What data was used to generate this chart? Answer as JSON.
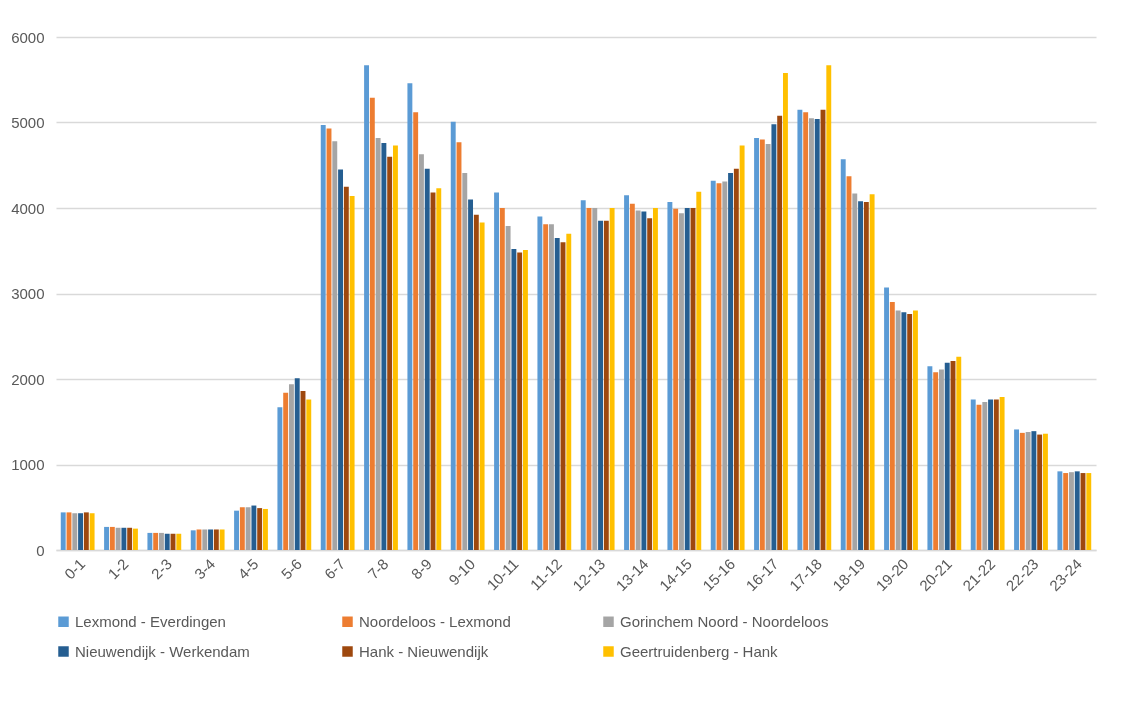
{
  "chart_data": {
    "type": "bar",
    "categories": [
      "0-1",
      "1-2",
      "2-3",
      "3-4",
      "4-5",
      "5-6",
      "6-7",
      "7-8",
      "8-9",
      "9-10",
      "10-11",
      "11-12",
      "12-13",
      "13-14",
      "14-15",
      "15-16",
      "16-17",
      "17-18",
      "18-19",
      "19-20",
      "20-21",
      "21-22",
      "22-23",
      "23-24"
    ],
    "series": [
      {
        "name": "Lexmond - Everdingen",
        "color": "#5b9bd5",
        "values": [
          440,
          270,
          200,
          230,
          460,
          1670,
          4970,
          5670,
          5460,
          5010,
          4180,
          3900,
          4090,
          4150,
          4070,
          4320,
          4820,
          5150,
          4570,
          3070,
          2150,
          1760,
          1410,
          920
        ]
      },
      {
        "name": "Noordeloos - Lexmond",
        "color": "#ed7d31",
        "values": [
          440,
          270,
          200,
          240,
          500,
          1840,
          4930,
          5290,
          5120,
          4770,
          4000,
          3810,
          4000,
          4050,
          3990,
          4290,
          4800,
          5120,
          4370,
          2900,
          2080,
          1700,
          1370,
          900
        ]
      },
      {
        "name": "Gorinchem Noord - Noordeloos",
        "color": "#a5a5a5",
        "values": [
          430,
          260,
          200,
          240,
          500,
          1940,
          4780,
          4820,
          4630,
          4410,
          3790,
          3810,
          4000,
          3970,
          3940,
          4310,
          4750,
          5050,
          4170,
          2800,
          2110,
          1730,
          1380,
          910
        ]
      },
      {
        "name": "Nieuwendijk - Werkendam",
        "color": "#255e91",
        "values": [
          430,
          260,
          190,
          240,
          520,
          2010,
          4450,
          4760,
          4460,
          4100,
          3520,
          3650,
          3850,
          3960,
          4000,
          4410,
          4980,
          5040,
          4080,
          2780,
          2190,
          1760,
          1390,
          920
        ]
      },
      {
        "name": "Hank - Nieuwendijk",
        "color": "#9e480e",
        "values": [
          440,
          260,
          190,
          240,
          490,
          1860,
          4250,
          4600,
          4180,
          3920,
          3480,
          3600,
          3850,
          3880,
          4000,
          4460,
          5080,
          5150,
          4070,
          2760,
          2210,
          1760,
          1350,
          900
        ]
      },
      {
        "name": "Geertruidenberg - Hank",
        "color": "#ffc000",
        "values": [
          430,
          250,
          190,
          240,
          480,
          1760,
          4140,
          4730,
          4230,
          3830,
          3510,
          3700,
          4000,
          4000,
          4190,
          4730,
          5580,
          5670,
          4160,
          2800,
          2260,
          1790,
          1360,
          900
        ]
      }
    ],
    "ylim": [
      0,
      6000
    ],
    "yticks": [
      0,
      1000,
      2000,
      3000,
      4000,
      5000,
      6000
    ],
    "grid": "y",
    "legend": "bottom"
  }
}
